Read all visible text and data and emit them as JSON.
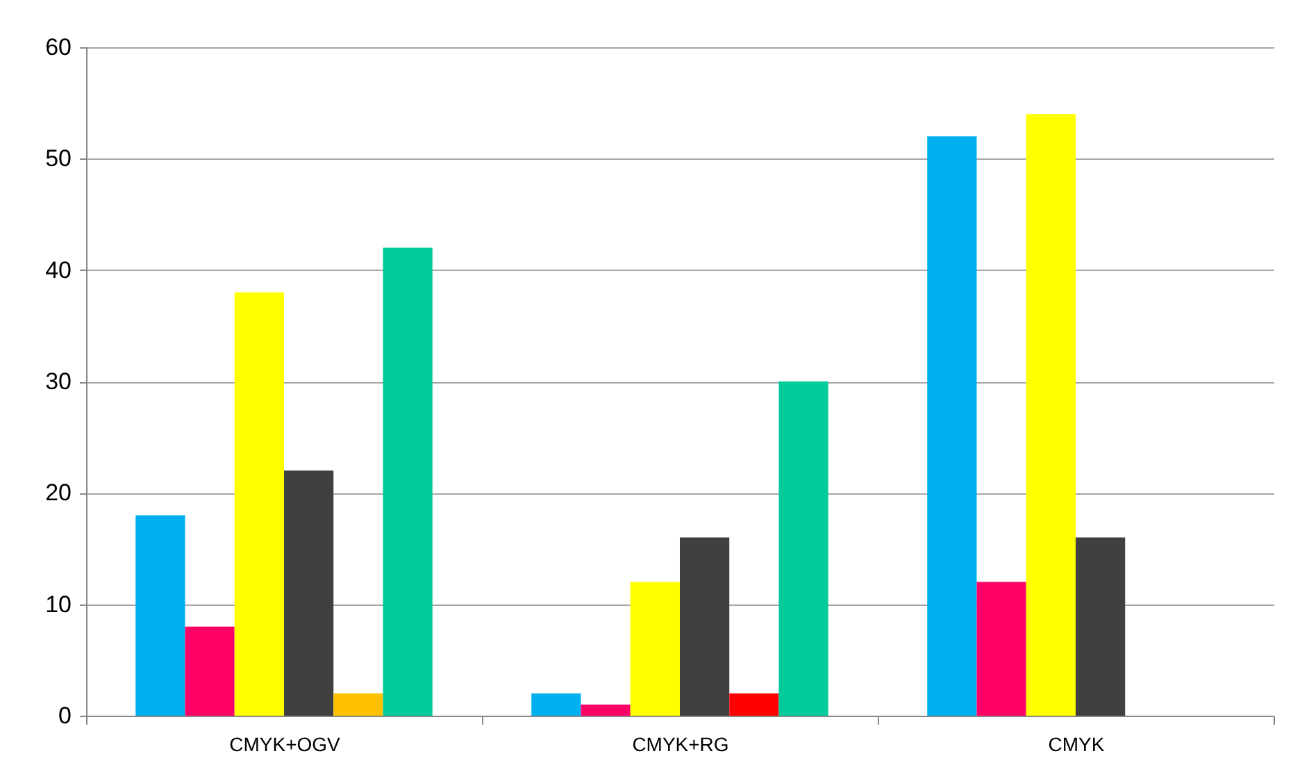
{
  "chart_data": {
    "type": "bar",
    "categories": [
      "CMYK+OGV",
      "CMYK+RG",
      "CMYK"
    ],
    "series": [
      {
        "color": "#00b0f0",
        "values": [
          18,
          2,
          52
        ]
      },
      {
        "color": "#ff0066",
        "values": [
          8,
          1,
          12
        ]
      },
      {
        "color": "#ffff00",
        "values": [
          38,
          12,
          54
        ]
      },
      {
        "color": "#404040",
        "values": [
          22,
          16,
          16
        ]
      },
      {
        "colors": [
          "#ffc000",
          "#ff0000",
          null
        ],
        "values": [
          2,
          2,
          null
        ]
      },
      {
        "color": "#00cc99",
        "values": [
          42,
          30,
          null
        ]
      }
    ],
    "ylim": [
      0,
      60
    ],
    "yticks": [
      0,
      10,
      20,
      30,
      40,
      50,
      60
    ],
    "grid": "y"
  }
}
